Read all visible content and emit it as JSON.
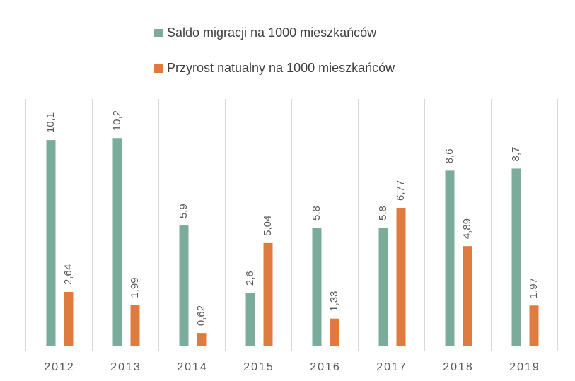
{
  "chart_data": {
    "type": "bar",
    "categories": [
      "2012",
      "2013",
      "2014",
      "2015",
      "2016",
      "2017",
      "2018",
      "2019"
    ],
    "series": [
      {
        "name": "Saldo migracji na 1000 mieszkańców",
        "color": "#7aab9b",
        "values": [
          10.1,
          10.2,
          5.9,
          2.6,
          5.8,
          5.8,
          8.6,
          8.7
        ],
        "value_labels": [
          "10,1",
          "10,2",
          "5,9",
          "2,6",
          "5,8",
          "5,8",
          "8,6",
          "8,7"
        ]
      },
      {
        "name": "Przyrost natualny na 1000 mieszkańców",
        "color": "#e07b3f",
        "values": [
          2.64,
          1.99,
          0.62,
          5.04,
          1.33,
          6.77,
          4.89,
          1.97
        ],
        "value_labels": [
          "2,64",
          "1,99",
          "0,62",
          "5,04",
          "1,33",
          "6,77",
          "4,89",
          "1,97"
        ]
      }
    ]
  }
}
